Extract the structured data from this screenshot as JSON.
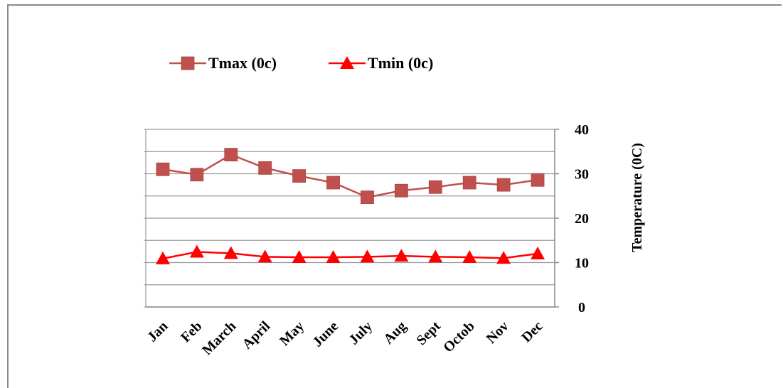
{
  "chart_data": {
    "type": "line",
    "categories": [
      "Jan",
      "Feb",
      "March",
      "April",
      "May",
      "June",
      "July",
      "Aug",
      "Sept",
      "Octob",
      "Nov",
      "Dec"
    ],
    "series": [
      {
        "name": "Tmax (0c)",
        "color": "#c0504d",
        "marker": "square",
        "values": [
          31,
          29.8,
          34.3,
          31.3,
          29.5,
          28,
          24.7,
          26.2,
          27,
          28,
          27.5,
          28.6
        ]
      },
      {
        "name": "Tmin (0c)",
        "color": "#ff0000",
        "marker": "triangle",
        "values": [
          10.9,
          12.4,
          12.1,
          11.3,
          11.2,
          11.2,
          11.3,
          11.5,
          11.3,
          11.2,
          11.0,
          12.0
        ]
      }
    ],
    "ylabel": "Temperature (0C)",
    "ylim": [
      0,
      40
    ],
    "yticks": [
      0,
      10,
      20,
      30,
      40
    ],
    "y_axis_side": "right",
    "grid": true,
    "legend_position": "top-left"
  }
}
